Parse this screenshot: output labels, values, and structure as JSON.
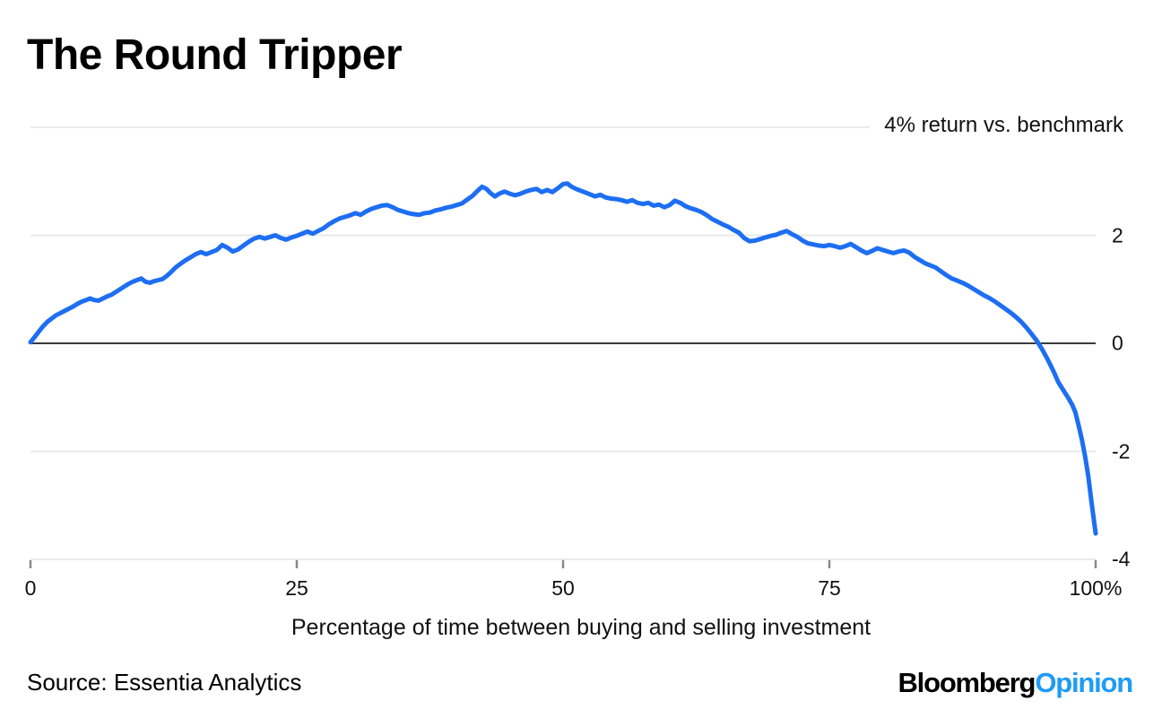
{
  "title": "The Round Tripper",
  "source": "Source: Essentia Analytics",
  "logo": {
    "black": "Bloomberg",
    "accent": "Opinion",
    "accent_color": "#1e9bf5"
  },
  "colors": {
    "line": "#1d6ef2",
    "grid": "#e9e9e9",
    "zero_line": "#3a3a3a",
    "tick_mark": "#888888",
    "text": "#111111"
  },
  "chart_data": {
    "type": "line",
    "title": "The Round Tripper",
    "series_label": "4% return vs. benchmark",
    "xlabel": "Percentage of time between buying and selling investment",
    "ylabel": "",
    "xlim": [
      0,
      100
    ],
    "ylim": [
      -4,
      4
    ],
    "grid": "horizontal",
    "x_ticks": [
      {
        "value": 0,
        "label": "0"
      },
      {
        "value": 25,
        "label": "25"
      },
      {
        "value": 50,
        "label": "50"
      },
      {
        "value": 75,
        "label": "75"
      },
      {
        "value": 100,
        "label": "100%"
      }
    ],
    "y_ticks": [
      {
        "value": 2,
        "label": "2"
      },
      {
        "value": 0,
        "label": "0"
      },
      {
        "value": -2,
        "label": "-2"
      },
      {
        "value": -4,
        "label": "-4"
      }
    ],
    "y_gridlines": [
      4,
      2,
      0,
      -2,
      -4
    ],
    "points": [
      [
        0,
        0.02
      ],
      [
        0.4,
        0.12
      ],
      [
        0.8,
        0.22
      ],
      [
        1.2,
        0.32
      ],
      [
        1.6,
        0.4
      ],
      [
        2,
        0.46
      ],
      [
        2.4,
        0.52
      ],
      [
        2.8,
        0.56
      ],
      [
        3.2,
        0.6
      ],
      [
        3.6,
        0.64
      ],
      [
        4,
        0.68
      ],
      [
        4.4,
        0.73
      ],
      [
        4.8,
        0.77
      ],
      [
        5.2,
        0.8
      ],
      [
        5.6,
        0.83
      ],
      [
        6,
        0.8
      ],
      [
        6.4,
        0.79
      ],
      [
        6.8,
        0.83
      ],
      [
        7.2,
        0.87
      ],
      [
        7.6,
        0.9
      ],
      [
        8,
        0.95
      ],
      [
        8.4,
        1.0
      ],
      [
        8.8,
        1.05
      ],
      [
        9.2,
        1.1
      ],
      [
        9.6,
        1.14
      ],
      [
        10,
        1.17
      ],
      [
        10.4,
        1.2
      ],
      [
        10.8,
        1.14
      ],
      [
        11.2,
        1.12
      ],
      [
        11.6,
        1.15
      ],
      [
        12,
        1.17
      ],
      [
        12.4,
        1.19
      ],
      [
        12.8,
        1.25
      ],
      [
        13.2,
        1.32
      ],
      [
        13.6,
        1.4
      ],
      [
        14,
        1.46
      ],
      [
        14.5,
        1.53
      ],
      [
        15,
        1.59
      ],
      [
        15.5,
        1.65
      ],
      [
        16,
        1.69
      ],
      [
        16.5,
        1.65
      ],
      [
        17,
        1.69
      ],
      [
        17.5,
        1.73
      ],
      [
        18,
        1.82
      ],
      [
        18.5,
        1.77
      ],
      [
        19,
        1.7
      ],
      [
        19.5,
        1.74
      ],
      [
        20,
        1.81
      ],
      [
        20.5,
        1.88
      ],
      [
        21,
        1.94
      ],
      [
        21.5,
        1.97
      ],
      [
        22,
        1.94
      ],
      [
        22.5,
        1.97
      ],
      [
        23,
        2.0
      ],
      [
        23.5,
        1.95
      ],
      [
        24,
        1.92
      ],
      [
        24.5,
        1.96
      ],
      [
        25,
        1.99
      ],
      [
        25.5,
        2.03
      ],
      [
        26,
        2.07
      ],
      [
        26.5,
        2.03
      ],
      [
        27,
        2.08
      ],
      [
        27.5,
        2.13
      ],
      [
        28,
        2.2
      ],
      [
        28.5,
        2.26
      ],
      [
        29,
        2.31
      ],
      [
        29.5,
        2.34
      ],
      [
        30,
        2.37
      ],
      [
        30.5,
        2.41
      ],
      [
        31,
        2.38
      ],
      [
        31.5,
        2.44
      ],
      [
        32,
        2.49
      ],
      [
        32.5,
        2.52
      ],
      [
        33,
        2.55
      ],
      [
        33.5,
        2.56
      ],
      [
        34,
        2.52
      ],
      [
        34.5,
        2.47
      ],
      [
        35,
        2.44
      ],
      [
        35.5,
        2.41
      ],
      [
        36,
        2.39
      ],
      [
        36.5,
        2.38
      ],
      [
        37,
        2.41
      ],
      [
        37.5,
        2.42
      ],
      [
        38,
        2.46
      ],
      [
        38.5,
        2.48
      ],
      [
        39,
        2.51
      ],
      [
        39.5,
        2.53
      ],
      [
        40,
        2.56
      ],
      [
        40.5,
        2.59
      ],
      [
        41,
        2.66
      ],
      [
        41.5,
        2.73
      ],
      [
        42,
        2.83
      ],
      [
        42.4,
        2.9
      ],
      [
        42.8,
        2.86
      ],
      [
        43.2,
        2.78
      ],
      [
        43.6,
        2.72
      ],
      [
        44,
        2.77
      ],
      [
        44.5,
        2.81
      ],
      [
        45,
        2.77
      ],
      [
        45.5,
        2.74
      ],
      [
        46,
        2.77
      ],
      [
        46.5,
        2.81
      ],
      [
        47,
        2.84
      ],
      [
        47.5,
        2.86
      ],
      [
        48,
        2.8
      ],
      [
        48.5,
        2.84
      ],
      [
        49,
        2.8
      ],
      [
        49.5,
        2.87
      ],
      [
        50,
        2.95
      ],
      [
        50.4,
        2.96
      ],
      [
        50.8,
        2.9
      ],
      [
        51.2,
        2.86
      ],
      [
        51.6,
        2.83
      ],
      [
        52,
        2.8
      ],
      [
        52.5,
        2.76
      ],
      [
        53,
        2.72
      ],
      [
        53.5,
        2.75
      ],
      [
        54,
        2.7
      ],
      [
        54.5,
        2.68
      ],
      [
        55,
        2.67
      ],
      [
        55.5,
        2.65
      ],
      [
        56,
        2.62
      ],
      [
        56.5,
        2.65
      ],
      [
        57,
        2.6
      ],
      [
        57.5,
        2.58
      ],
      [
        58,
        2.6
      ],
      [
        58.5,
        2.55
      ],
      [
        59,
        2.57
      ],
      [
        59.5,
        2.52
      ],
      [
        60,
        2.56
      ],
      [
        60.5,
        2.64
      ],
      [
        61,
        2.6
      ],
      [
        61.5,
        2.54
      ],
      [
        62,
        2.5
      ],
      [
        62.5,
        2.47
      ],
      [
        63,
        2.43
      ],
      [
        63.5,
        2.37
      ],
      [
        64,
        2.3
      ],
      [
        64.5,
        2.25
      ],
      [
        65,
        2.2
      ],
      [
        65.5,
        2.16
      ],
      [
        66,
        2.1
      ],
      [
        66.5,
        2.05
      ],
      [
        67,
        1.95
      ],
      [
        67.5,
        1.89
      ],
      [
        68,
        1.9
      ],
      [
        68.5,
        1.93
      ],
      [
        69,
        1.96
      ],
      [
        69.5,
        1.99
      ],
      [
        70,
        2.01
      ],
      [
        70.5,
        2.05
      ],
      [
        71,
        2.08
      ],
      [
        71.5,
        2.02
      ],
      [
        72,
        1.97
      ],
      [
        72.5,
        1.9
      ],
      [
        73,
        1.85
      ],
      [
        73.5,
        1.83
      ],
      [
        74,
        1.81
      ],
      [
        74.5,
        1.8
      ],
      [
        75,
        1.82
      ],
      [
        75.5,
        1.8
      ],
      [
        76,
        1.77
      ],
      [
        76.5,
        1.8
      ],
      [
        77,
        1.84
      ],
      [
        77.5,
        1.78
      ],
      [
        78,
        1.72
      ],
      [
        78.5,
        1.67
      ],
      [
        79,
        1.71
      ],
      [
        79.5,
        1.76
      ],
      [
        80,
        1.73
      ],
      [
        80.5,
        1.7
      ],
      [
        81,
        1.67
      ],
      [
        81.5,
        1.7
      ],
      [
        82,
        1.72
      ],
      [
        82.5,
        1.68
      ],
      [
        83,
        1.6
      ],
      [
        83.5,
        1.54
      ],
      [
        84,
        1.48
      ],
      [
        84.5,
        1.44
      ],
      [
        85,
        1.4
      ],
      [
        85.5,
        1.33
      ],
      [
        86,
        1.26
      ],
      [
        86.5,
        1.2
      ],
      [
        87,
        1.16
      ],
      [
        87.5,
        1.12
      ],
      [
        88,
        1.07
      ],
      [
        88.5,
        1.01
      ],
      [
        89,
        0.95
      ],
      [
        89.5,
        0.89
      ],
      [
        90,
        0.84
      ],
      [
        90.5,
        0.78
      ],
      [
        91,
        0.71
      ],
      [
        91.5,
        0.64
      ],
      [
        92,
        0.57
      ],
      [
        92.5,
        0.49
      ],
      [
        93,
        0.4
      ],
      [
        93.5,
        0.29
      ],
      [
        94,
        0.17
      ],
      [
        94.5,
        0.04
      ],
      [
        95,
        -0.12
      ],
      [
        95.5,
        -0.3
      ],
      [
        96,
        -0.5
      ],
      [
        96.5,
        -0.72
      ],
      [
        97,
        -0.88
      ],
      [
        97.4,
        -1.0
      ],
      [
        97.8,
        -1.14
      ],
      [
        98.1,
        -1.28
      ],
      [
        98.4,
        -1.52
      ],
      [
        98.7,
        -1.78
      ],
      [
        99,
        -2.08
      ],
      [
        99.3,
        -2.45
      ],
      [
        99.6,
        -2.92
      ],
      [
        99.8,
        -3.22
      ],
      [
        100,
        -3.52
      ]
    ]
  }
}
